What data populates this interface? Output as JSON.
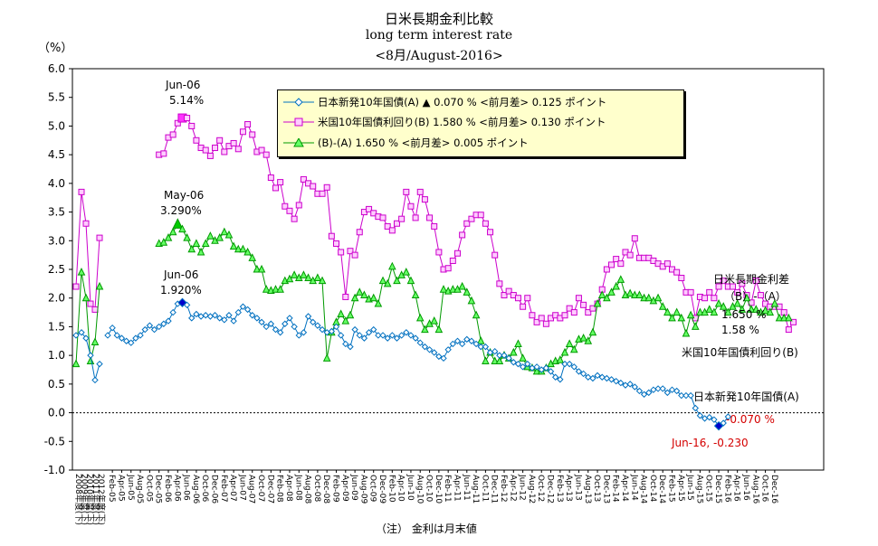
{
  "titles": {
    "main": "日米長期金利比較",
    "sub": "long term interest rate",
    "date": "<8月/August-2016>"
  },
  "unit_label": "（%）",
  "note": "（注）  金利は月末値",
  "legend": [
    "日本新発10年国債(A) ▲ 0.070 % <前月差> 0.125 ポイント",
    "米国10年国債利回り(B) 1.580 % <前月差> 0.130 ポイント",
    "(B)-(A) 1.650 % <前月差> 0.005 ポイント"
  ],
  "annotations": {
    "us_peak_date": "Jun-06",
    "us_peak_val": "5.14%",
    "spread_peak_date": "May-06",
    "spread_peak_val": "3.290%",
    "jp_peak_date": "Jun-06",
    "jp_peak_val": "1.920%",
    "spread_title_1": "日米長期金利差",
    "spread_title_2": "（B）-（A）",
    "spread_val": "1.650 %",
    "us_val": "1.58  %",
    "us_label": "米国10年国債利回り(B)",
    "jp_label": "日本新発10年国債(A)",
    "jp_val": "-0.070 %",
    "jp_low": "Jun-16, -0.230"
  },
  "colors": {
    "japan": "#0070c0",
    "us": "#cc00cc",
    "spread": "#009900",
    "red": "#d40000"
  },
  "chart_data": {
    "type": "line",
    "ylim": [
      -1.0,
      6.0
    ],
    "yticks": [
      "6.0",
      "5.5",
      "5.0",
      "4.5",
      "4.0",
      "3.5",
      "3.0",
      "2.5",
      "2.0",
      "1.5",
      "1.0",
      "0.5",
      "0.0",
      "-0.5",
      "-1.0"
    ],
    "x_annual_labels": [
      "2008年度(下)",
      "2009年度(下)",
      "2010年度(下)",
      "2011年度(下)",
      "2012年度(下)"
    ],
    "x_month_labels": [
      "Feb-05",
      "Apr-05",
      "Jun-05",
      "Aug-05",
      "Oct-05",
      "Dec-05",
      "Feb-06",
      "Apr-06",
      "Jun-06",
      "Aug-06",
      "Oct-06",
      "Dec-06",
      "Feb-07",
      "Apr-07",
      "Jun-07",
      "Aug-07",
      "Oct-07",
      "Dec-07",
      "Feb-08",
      "Apr-08",
      "Jun-08",
      "Aug-08",
      "Oct-08",
      "Dec-08",
      "Feb-09",
      "Apr-09",
      "Jun-09",
      "Aug-09",
      "Oct-09",
      "Dec-09",
      "Feb-10",
      "Apr-10",
      "Jun-10",
      "Aug-10",
      "Oct-10",
      "Dec-10",
      "Feb-11",
      "Apr-11",
      "Jun-11",
      "Aug-11",
      "Oct-11",
      "Dec-11",
      "Feb-12",
      "Apr-12",
      "Jun-12",
      "Aug-12",
      "Oct-12",
      "Dec-12",
      "Feb-13",
      "Apr-13",
      "Jun-13",
      "Aug-13",
      "Oct-13",
      "Dec-13",
      "Feb-14",
      "Apr-14",
      "Jun-14",
      "Aug-14",
      "Oct-14",
      "Dec-14",
      "Feb-15",
      "Apr-15",
      "Jun-15",
      "Aug-15",
      "Oct-15",
      "Dec-15",
      "Feb-16",
      "Apr-16",
      "Jun-16",
      "Aug-16",
      "Oct-16",
      "Dec-16"
    ],
    "annual_japan": [
      1.35,
      1.4,
      1.3,
      1.0,
      0.57,
      0.85
    ],
    "annual_us": [
      2.2,
      3.85,
      3.3,
      1.9,
      1.8,
      3.05
    ],
    "annual_spread": [
      0.85,
      2.45,
      2.0,
      0.9,
      1.23,
      2.2
    ],
    "monthly_start": "Jan-05",
    "japan": [
      1.35,
      1.48,
      1.35,
      1.3,
      1.25,
      1.22,
      1.3,
      1.35,
      1.45,
      1.52,
      1.45,
      1.5,
      1.55,
      1.6,
      1.75,
      1.9,
      1.92,
      1.88,
      1.65,
      1.72,
      1.68,
      1.7,
      1.68,
      1.7,
      1.65,
      1.62,
      1.7,
      1.6,
      1.75,
      1.85,
      1.8,
      1.7,
      1.65,
      1.58,
      1.5,
      1.55,
      1.45,
      1.4,
      1.55,
      1.65,
      1.5,
      1.35,
      1.4,
      1.68,
      1.58,
      1.52,
      1.45,
      1.4,
      1.42,
      1.5,
      1.35,
      1.2,
      1.15,
      1.45,
      1.35,
      1.3,
      1.4,
      1.45,
      1.35,
      1.35,
      1.3,
      1.35,
      1.3,
      1.35,
      1.4,
      1.35,
      1.3,
      1.22,
      1.15,
      1.1,
      1.05,
      0.98,
      0.95,
      1.1,
      1.2,
      1.25,
      1.2,
      1.28,
      1.25,
      1.2,
      1.15,
      1.15,
      1.05,
      1.07,
      1.0,
      1.0,
      0.95,
      0.88,
      0.85,
      0.8,
      0.85,
      0.78,
      0.8,
      0.75,
      0.78,
      0.72,
      0.62,
      0.58,
      0.85,
      0.85,
      0.8,
      0.72,
      0.68,
      0.62,
      0.6,
      0.65,
      0.62,
      0.6,
      0.58,
      0.55,
      0.52,
      0.48,
      0.5,
      0.45,
      0.38,
      0.32,
      0.35,
      0.4,
      0.42,
      0.42,
      0.35,
      0.4,
      0.38,
      0.3,
      0.3,
      0.3,
      0.08,
      -0.05,
      -0.1,
      -0.08,
      -0.12,
      -0.23,
      -0.18,
      -0.07
    ],
    "us": [
      4.5,
      4.52,
      4.8,
      4.85,
      5.05,
      5.14,
      5.14,
      5.0,
      4.75,
      4.62,
      4.58,
      4.48,
      4.62,
      4.75,
      4.55,
      4.65,
      4.7,
      4.6,
      4.9,
      5.03,
      4.85,
      4.55,
      4.58,
      4.5,
      4.1,
      3.92,
      4.02,
      3.6,
      3.52,
      3.38,
      3.62,
      4.07,
      4.0,
      3.95,
      3.82,
      3.82,
      3.93,
      3.08,
      2.95,
      2.8,
      2.02,
      2.82,
      2.75,
      3.15,
      3.5,
      3.55,
      3.48,
      3.42,
      3.4,
      3.25,
      3.18,
      3.3,
      3.38,
      3.85,
      3.6,
      3.4,
      3.85,
      3.72,
      3.4,
      3.25,
      2.8,
      2.5,
      2.52,
      2.65,
      2.78,
      3.1,
      3.3,
      3.38,
      3.45,
      3.45,
      3.3,
      3.15,
      2.75,
      2.25,
      2.05,
      2.12,
      2.05,
      2.0,
      1.85,
      2.0,
      1.7,
      1.58,
      1.65,
      1.55,
      1.65,
      1.7,
      1.65,
      1.7,
      1.82,
      1.75,
      2.0,
      1.88,
      1.75,
      1.82,
      1.9,
      2.15,
      2.5,
      2.58,
      2.68,
      2.6,
      2.8,
      2.75,
      3.04,
      2.7,
      2.7,
      2.7,
      2.65,
      2.6,
      2.55,
      2.6,
      2.5,
      2.45,
      2.35,
      2.1,
      2.1,
      1.65,
      2.02,
      2.0,
      2.1,
      2.0,
      2.2,
      2.3,
      2.2,
      2.2,
      2.1,
      2.25,
      2.05,
      1.92,
      2.3,
      2.05,
      1.9,
      1.85,
      1.85,
      1.85,
      1.75,
      1.45,
      1.58
    ],
    "spread": [
      2.95,
      2.97,
      3.05,
      3.15,
      3.29,
      3.2,
      3.05,
      2.85,
      2.95,
      2.8,
      2.95,
      3.08,
      3.0,
      3.05,
      3.15,
      3.1,
      2.9,
      2.85,
      2.85,
      2.8,
      2.7,
      2.5,
      2.5,
      2.15,
      2.13,
      2.15,
      2.15,
      2.3,
      2.33,
      2.4,
      2.35,
      2.4,
      2.35,
      2.3,
      2.35,
      2.3,
      0.95,
      1.4,
      1.58,
      1.72,
      1.6,
      1.7,
      2.0,
      2.1,
      2.05,
      1.98,
      2.0,
      1.9,
      2.3,
      2.25,
      2.55,
      2.3,
      2.4,
      2.45,
      2.3,
      2.05,
      1.65,
      1.45,
      1.55,
      1.6,
      1.45,
      2.15,
      2.12,
      2.15,
      2.15,
      2.2,
      2.1,
      1.95,
      1.7,
      1.25,
      0.9,
      1.05,
      0.9,
      0.9,
      1.0,
      0.95,
      1.05,
      1.2,
      0.95,
      0.8,
      0.78,
      0.72,
      0.72,
      0.78,
      0.85,
      0.9,
      0.92,
      1.05,
      1.2,
      1.1,
      1.28,
      1.3,
      1.25,
      1.4,
      1.9,
      2.05,
      2.0,
      2.1,
      2.2,
      2.32,
      2.05,
      2.08,
      2.05,
      2.05,
      2.0,
      2.0,
      1.95,
      2.0,
      1.85,
      1.75,
      1.65,
      1.75,
      1.65,
      1.38,
      1.7,
      1.5,
      1.75,
      1.75,
      1.8,
      1.75,
      1.9,
      1.85,
      1.75,
      1.85,
      1.9,
      1.8,
      2.0,
      1.8,
      1.8,
      1.75,
      1.78,
      1.75,
      1.9,
      1.65,
      1.65,
      1.65
    ]
  }
}
